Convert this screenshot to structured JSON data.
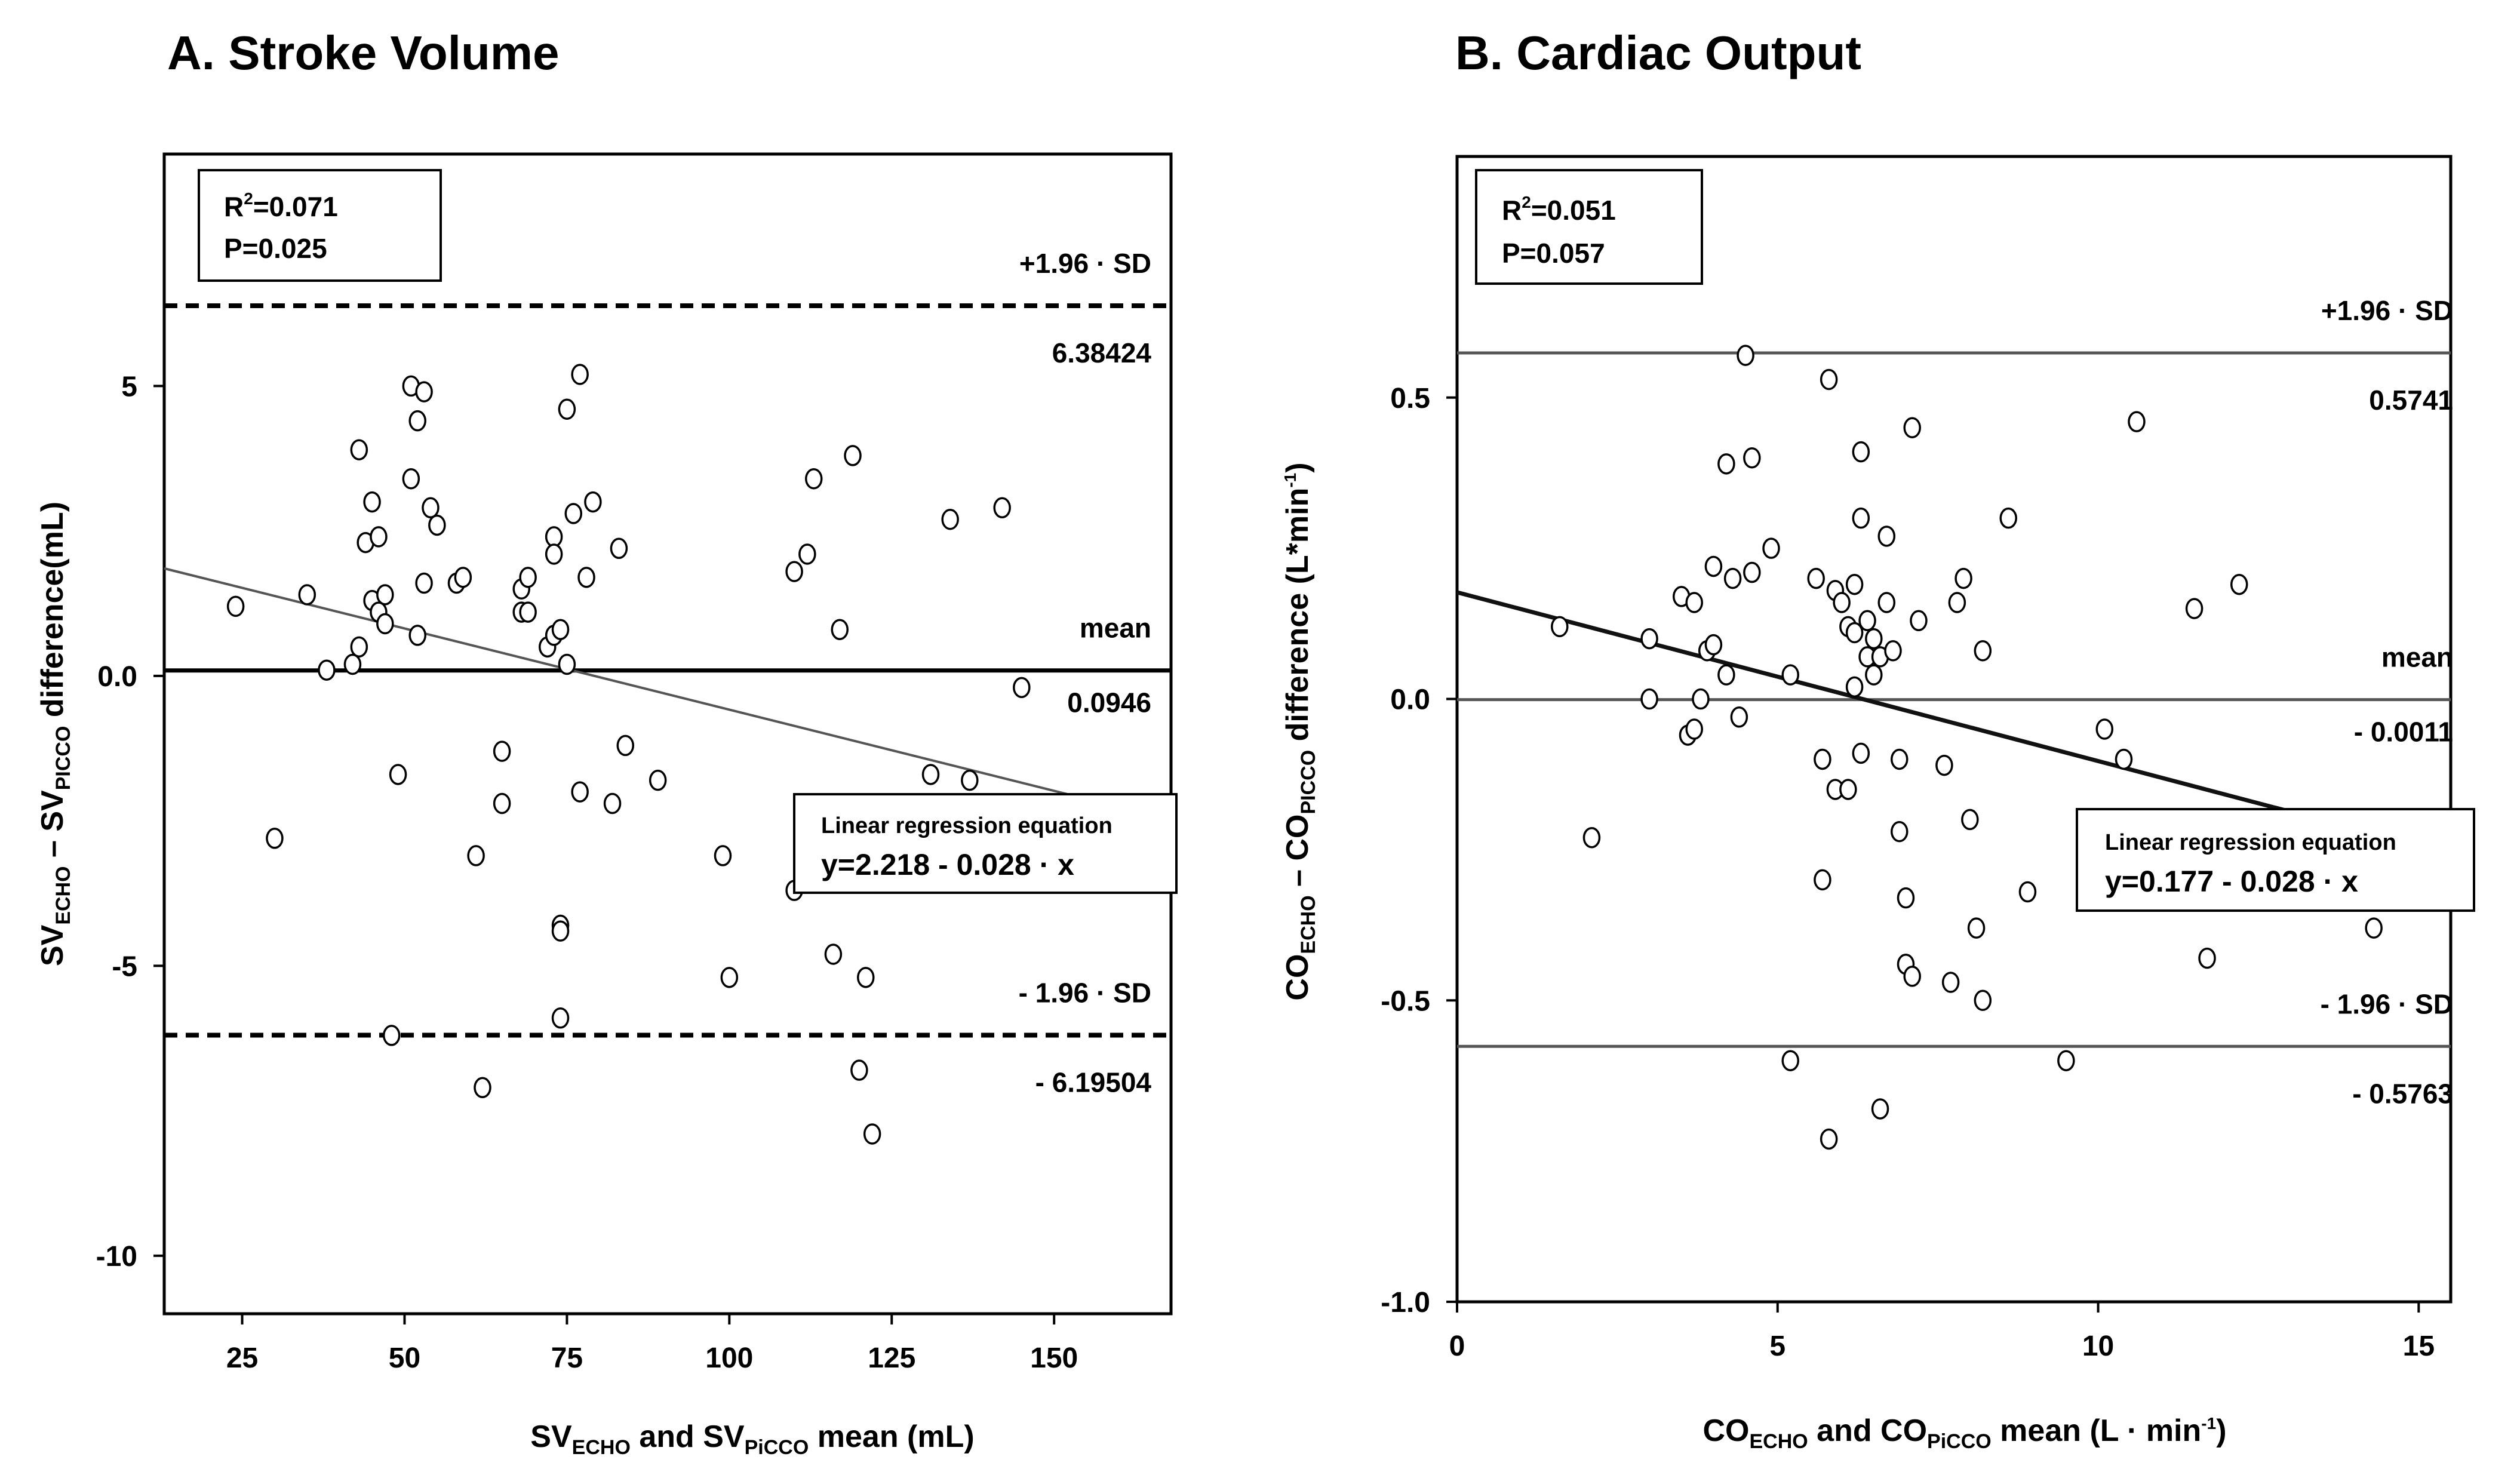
{
  "chart_data": [
    {
      "type": "scatter",
      "panel": "A",
      "title": "A. Stroke Volume",
      "xlabel": {
        "main1": "SV",
        "sub1": "ECHO",
        "mid": " and SV",
        "sub2": "PiCCO",
        "tail": " mean (mL)"
      },
      "ylabel": {
        "main1": "SV",
        "sub1": "ECHO",
        "mid": " – SV",
        "sub2": "PICCO",
        "tail": " difference(mL)"
      },
      "xlim": [
        13,
        168
      ],
      "ylim": [
        -11,
        9
      ],
      "xticks": [
        25,
        50,
        75,
        100,
        125,
        150
      ],
      "xtick_labels": [
        "25",
        "50",
        "75",
        "100",
        "125",
        "150"
      ],
      "yticks": [
        5,
        0,
        -5,
        -10
      ],
      "ytick_labels": [
        "5",
        "0.0",
        "-5",
        "-10"
      ],
      "stats": {
        "r2_label": "R",
        "r2_sup": "2",
        "r2_value": "=0.071",
        "p_text": "P=0.025"
      },
      "ref_lines": [
        {
          "name": "upper-loa",
          "value": 6.38424,
          "style": "dashed",
          "label": "+1.96 · SD",
          "value_label": "6.38424"
        },
        {
          "name": "mean",
          "value": 0.0946,
          "style": "solid",
          "label": "mean",
          "value_label": "0.0946"
        },
        {
          "name": "lower-loa",
          "value": -6.19504,
          "style": "dashed",
          "label": "- 1.96 · SD",
          "value_label": "- 6.19504"
        }
      ],
      "regression": {
        "intercept": 2.218,
        "slope": -0.028,
        "title": "Linear regression equation",
        "equation": "y=2.218 - 0.028 · x"
      },
      "points": [
        [
          24,
          1.2
        ],
        [
          30,
          -2.8
        ],
        [
          35,
          1.4
        ],
        [
          38,
          0.1
        ],
        [
          42,
          0.2
        ],
        [
          43,
          0.5
        ],
        [
          43,
          3.9
        ],
        [
          44,
          2.3
        ],
        [
          45,
          3.0
        ],
        [
          45,
          1.3
        ],
        [
          46,
          2.4
        ],
        [
          46,
          1.1
        ],
        [
          47,
          1.4
        ],
        [
          47,
          0.9
        ],
        [
          48,
          -6.2
        ],
        [
          49,
          -1.7
        ],
        [
          51,
          5.0
        ],
        [
          51,
          3.4
        ],
        [
          52,
          4.4
        ],
        [
          52,
          0.7
        ],
        [
          53,
          4.9
        ],
        [
          53,
          1.6
        ],
        [
          54,
          2.9
        ],
        [
          55,
          2.6
        ],
        [
          58,
          1.6
        ],
        [
          59,
          1.7
        ],
        [
          61,
          -3.1
        ],
        [
          62,
          -7.1
        ],
        [
          65,
          -2.2
        ],
        [
          65,
          -1.3
        ],
        [
          68,
          1.1
        ],
        [
          68,
          1.5
        ],
        [
          69,
          1.7
        ],
        [
          69,
          1.1
        ],
        [
          72,
          0.5
        ],
        [
          73,
          0.7
        ],
        [
          73,
          2.4
        ],
        [
          73,
          2.1
        ],
        [
          74,
          0.8
        ],
        [
          74,
          -4.3
        ],
        [
          74,
          -4.4
        ],
        [
          74,
          -5.9
        ],
        [
          75,
          0.2
        ],
        [
          75,
          4.6
        ],
        [
          76,
          2.8
        ],
        [
          77,
          5.2
        ],
        [
          77,
          -2.0
        ],
        [
          78,
          1.7
        ],
        [
          79,
          3.0
        ],
        [
          82,
          -2.2
        ],
        [
          83,
          2.2
        ],
        [
          84,
          -1.2
        ],
        [
          89,
          -1.8
        ],
        [
          99,
          -3.1
        ],
        [
          100,
          -5.2
        ],
        [
          110,
          -3.7
        ],
        [
          110,
          1.8
        ],
        [
          112,
          2.1
        ],
        [
          113,
          3.4
        ],
        [
          116,
          -4.8
        ],
        [
          117,
          0.8
        ],
        [
          119,
          3.8
        ],
        [
          120,
          -6.8
        ],
        [
          121,
          -5.2
        ],
        [
          122,
          -7.9
        ],
        [
          131,
          -1.7
        ],
        [
          134,
          2.7
        ],
        [
          137,
          -1.8
        ],
        [
          142,
          2.9
        ],
        [
          145,
          -0.2
        ]
      ]
    },
    {
      "type": "scatter",
      "panel": "B",
      "title": "B. Cardiac Output",
      "xlabel": {
        "main1": "CO",
        "sub1": "ECHO",
        "mid": " and CO",
        "sub2": "PiCCO",
        "tail": " mean (L · min",
        "sup": "-1",
        "end": ")"
      },
      "ylabel": {
        "main1": "CO",
        "sub1": "ECHO",
        "mid": " – CO",
        "sub2": "PICCO",
        "tail": " difference (L*min",
        "sup": "-1",
        "end": ")"
      },
      "xlim": [
        0,
        15.5
      ],
      "ylim": [
        -1.0,
        0.9
      ],
      "xticks": [
        0,
        5,
        10,
        15
      ],
      "xtick_labels": [
        "0",
        "5",
        "10",
        "15"
      ],
      "yticks": [
        0.5,
        0,
        -0.5,
        -1.0
      ],
      "ytick_labels": [
        "0.5",
        "0.0",
        "-0.5",
        "-1.0"
      ],
      "stats": {
        "r2_label": "R",
        "r2_sup": "2",
        "r2_value": "=0.051",
        "p_text": "P=0.057"
      },
      "ref_lines": [
        {
          "name": "upper-loa",
          "value": 0.5741,
          "style": "solid",
          "label": "+1.96 · SD",
          "value_label": "0.5741"
        },
        {
          "name": "mean",
          "value": -0.0011,
          "style": "solid",
          "label": "mean",
          "value_label": "- 0.0011"
        },
        {
          "name": "lower-loa",
          "value": -0.5763,
          "style": "solid",
          "label": "- 1.96 · SD",
          "value_label": "- 0.5763"
        }
      ],
      "regression": {
        "intercept": 0.177,
        "slope": -0.028,
        "title": "Linear regression equation",
        "equation": "y=0.177 - 0.028 · x"
      },
      "points": [
        [
          1.6,
          0.12
        ],
        [
          2.1,
          -0.23
        ],
        [
          3.0,
          0.1
        ],
        [
          3.0,
          0.0
        ],
        [
          3.5,
          0.17
        ],
        [
          3.6,
          -0.06
        ],
        [
          3.7,
          -0.05
        ],
        [
          3.7,
          0.16
        ],
        [
          3.8,
          0.0
        ],
        [
          3.9,
          0.08
        ],
        [
          4.0,
          0.22
        ],
        [
          4.0,
          0.09
        ],
        [
          4.2,
          0.04
        ],
        [
          4.2,
          0.39
        ],
        [
          4.3,
          0.2
        ],
        [
          4.4,
          -0.03
        ],
        [
          4.5,
          0.57
        ],
        [
          4.6,
          0.21
        ],
        [
          4.6,
          0.4
        ],
        [
          4.9,
          0.25
        ],
        [
          5.2,
          0.04
        ],
        [
          5.2,
          -0.6
        ],
        [
          5.6,
          0.2
        ],
        [
          5.7,
          -0.1
        ],
        [
          5.7,
          -0.3
        ],
        [
          5.8,
          0.53
        ],
        [
          5.8,
          -0.73
        ],
        [
          5.9,
          0.18
        ],
        [
          5.9,
          -0.15
        ],
        [
          6.0,
          0.16
        ],
        [
          6.1,
          -0.15
        ],
        [
          6.1,
          0.12
        ],
        [
          6.2,
          0.19
        ],
        [
          6.2,
          0.02
        ],
        [
          6.2,
          0.11
        ],
        [
          6.3,
          -0.09
        ],
        [
          6.3,
          0.41
        ],
        [
          6.3,
          0.3
        ],
        [
          6.4,
          0.13
        ],
        [
          6.4,
          0.07
        ],
        [
          6.5,
          0.1
        ],
        [
          6.5,
          0.04
        ],
        [
          6.6,
          0.07
        ],
        [
          6.6,
          -0.68
        ],
        [
          6.7,
          0.16
        ],
        [
          6.7,
          0.27
        ],
        [
          6.8,
          0.08
        ],
        [
          6.9,
          -0.1
        ],
        [
          6.9,
          -0.22
        ],
        [
          7.0,
          -0.33
        ],
        [
          7.0,
          -0.44
        ],
        [
          7.1,
          -0.46
        ],
        [
          7.1,
          0.45
        ],
        [
          7.2,
          0.13
        ],
        [
          7.6,
          -0.11
        ],
        [
          7.7,
          -0.47
        ],
        [
          7.8,
          0.16
        ],
        [
          7.9,
          0.2
        ],
        [
          8.0,
          -0.2
        ],
        [
          8.1,
          -0.38
        ],
        [
          8.2,
          -0.5
        ],
        [
          8.2,
          0.08
        ],
        [
          8.6,
          0.3
        ],
        [
          8.9,
          -0.32
        ],
        [
          9.5,
          -0.6
        ],
        [
          10.1,
          -0.05
        ],
        [
          10.4,
          -0.1
        ],
        [
          10.6,
          0.46
        ],
        [
          11.5,
          0.15
        ],
        [
          11.7,
          -0.43
        ],
        [
          12.2,
          0.19
        ],
        [
          14.3,
          -0.38
        ]
      ]
    }
  ]
}
